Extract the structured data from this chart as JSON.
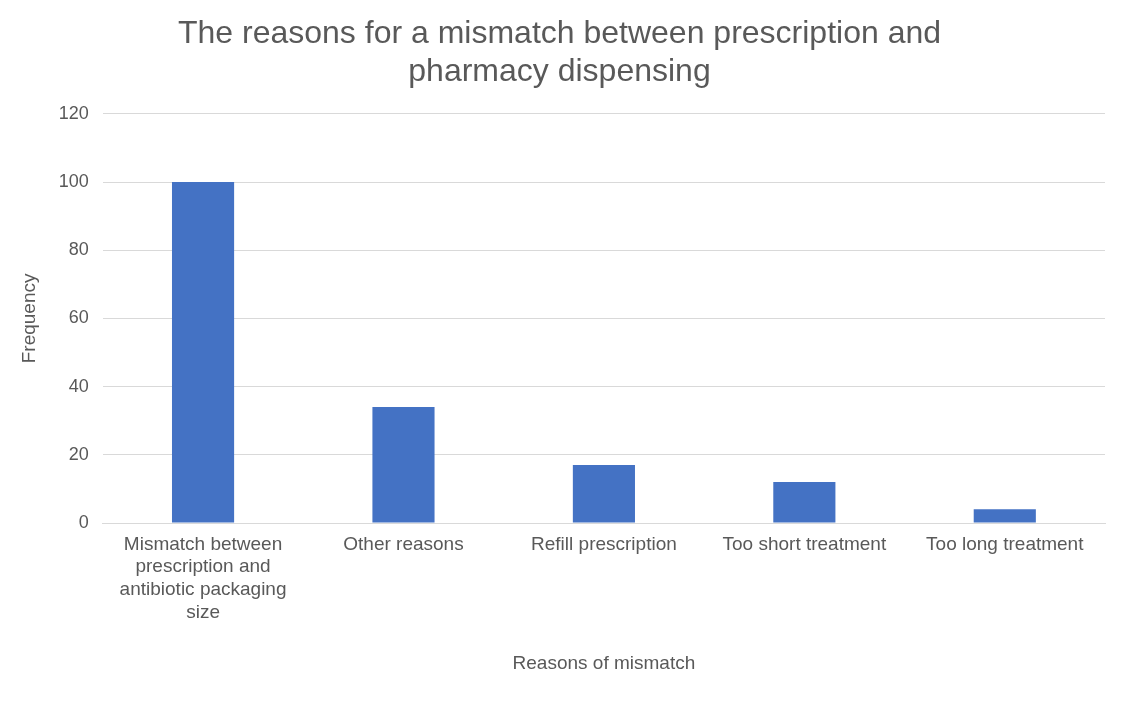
{
  "chart_data": {
    "type": "bar",
    "title": "The reasons for a mismatch between prescription and pharmacy dispensing",
    "xlabel": "Reasons of mismatch",
    "ylabel": "Frequency",
    "categories": [
      "Mismatch between prescription and antibiotic packaging size",
      "Other reasons",
      "Refill prescription",
      "Too short treatment",
      "Too long treatment"
    ],
    "values": [
      100,
      34,
      17,
      12,
      4
    ],
    "color": "#4472c4",
    "ylim": [
      0,
      120
    ],
    "yticks": [
      0,
      20,
      40,
      60,
      80,
      100,
      120
    ],
    "grid": "y"
  }
}
